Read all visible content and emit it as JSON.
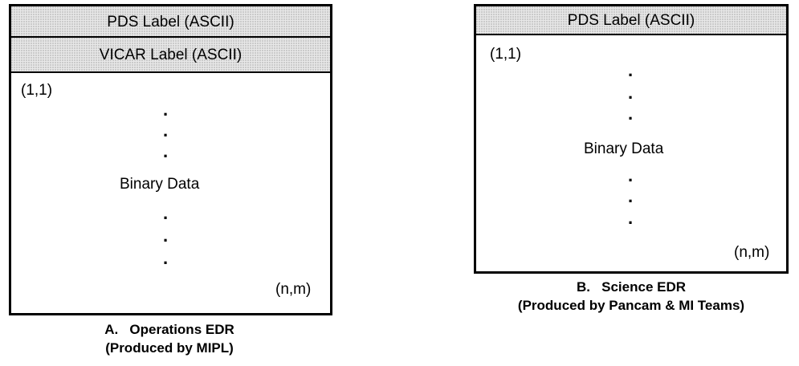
{
  "diagram_a": {
    "pds_label": "PDS Label (ASCII)",
    "vicar_label": "VICAR Label (ASCII)",
    "start_coord": "(1,1)",
    "body_label": "Binary Data",
    "end_coord": "(n,m)",
    "dot": ".",
    "caption_line1": "A.   Operations EDR",
    "caption_line2": "(Produced by MIPL)"
  },
  "diagram_b": {
    "pds_label": "PDS Label (ASCII)",
    "start_coord": "(1,1)",
    "body_label": "Binary Data",
    "end_coord": "(n,m)",
    "dot": ".",
    "caption_line1": "B.   Science EDR",
    "caption_line2": "(Produced by Pancam & MI Teams)"
  }
}
